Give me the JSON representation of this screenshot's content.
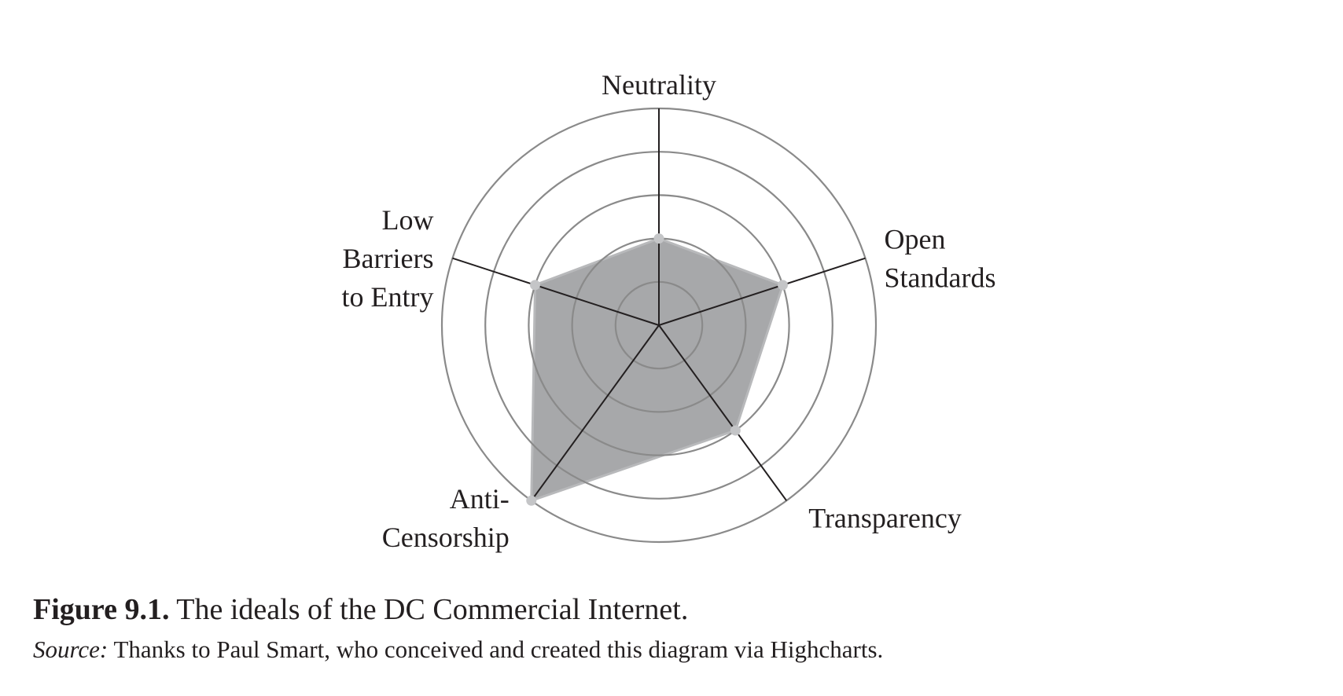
{
  "chart_data": {
    "type": "radar",
    "categories": [
      [
        "Neutrality"
      ],
      [
        "Open",
        "Standards"
      ],
      [
        "Transparency"
      ],
      [
        "Anti-",
        "Censorship"
      ],
      [
        "Low",
        "Barriers",
        "to Entry"
      ]
    ],
    "values": [
      2,
      3,
      3,
      5,
      3
    ],
    "rlim": [
      0,
      5
    ],
    "rings": 5,
    "series": [
      {
        "values": [
          2,
          3,
          3,
          5,
          3
        ]
      }
    ],
    "grid": true,
    "legend": "none",
    "colors": {
      "fill": "#a7a8aa",
      "fill_stroke": "#b8b9bb",
      "marker": "#c4c5c7",
      "ring": "#8a8a8a",
      "spoke": "#231f20"
    }
  },
  "caption": {
    "figure_number": "Figure 9.1.",
    "text": " The ideals of the DC Commercial Internet."
  },
  "source": {
    "label": "Source:",
    "text": " Thanks to Paul Smart, who conceived and created this diagram via Highcharts."
  }
}
